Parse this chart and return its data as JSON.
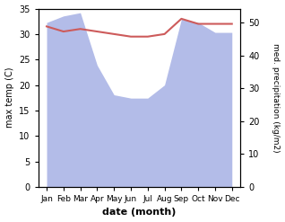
{
  "months": [
    "Jan",
    "Feb",
    "Mar",
    "Apr",
    "May",
    "Jun",
    "Jul",
    "Aug",
    "Sep",
    "Oct",
    "Nov",
    "Dec"
  ],
  "month_positions": [
    1,
    2,
    3,
    4,
    5,
    6,
    7,
    8,
    9,
    10,
    11,
    12
  ],
  "temp_max": [
    31.5,
    30.5,
    31.0,
    30.5,
    30.0,
    29.5,
    29.5,
    30.0,
    33.0,
    32.0,
    32.0,
    32.0
  ],
  "precip": [
    50,
    52,
    53,
    37,
    28,
    27,
    27,
    31,
    51,
    50,
    47,
    47
  ],
  "temp_ylim": [
    0,
    35
  ],
  "precip_ylim": [
    0,
    54.25
  ],
  "temp_color": "#cd5b5b",
  "precip_color": "#b3bce8",
  "xlabel": "date (month)",
  "ylabel_left": "max temp (C)",
  "ylabel_right": "med. precipitation (kg/m2)",
  "left_yticks": [
    0,
    5,
    10,
    15,
    20,
    25,
    30,
    35
  ],
  "right_yticks": [
    0,
    10,
    20,
    30,
    40,
    50
  ],
  "temp_linewidth": 1.5,
  "figsize": [
    3.18,
    2.47
  ],
  "dpi": 100
}
